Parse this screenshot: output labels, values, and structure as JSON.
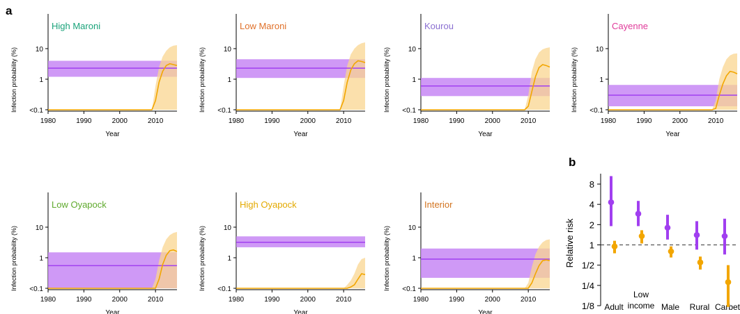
{
  "panel_labels": {
    "a": "a",
    "b": "b"
  },
  "colors": {
    "purple_line": "#a13ff0",
    "purple_band": "#c787f5",
    "orange_line": "#f2a600",
    "orange_band": "#f9d590",
    "dashed": "#555555"
  },
  "chart_data": [
    {
      "type": "area",
      "title": "High Maroni",
      "title_color": "#1aa37a",
      "xlabel": "Year",
      "ylabel": "Infection probability (%)",
      "x_ticks": [
        "1980",
        "1990",
        "2000",
        "2010"
      ],
      "y_ticks": [
        "<0.1",
        "1",
        "10"
      ],
      "xlim": [
        1980,
        2016
      ],
      "purple": {
        "mean": 2.3,
        "lo": 1.2,
        "hi": 4.0
      },
      "orange": {
        "x": [
          2009,
          2010,
          2011,
          2012,
          2013,
          2014,
          2015,
          2016
        ],
        "y": [
          0.1,
          0.2,
          0.8,
          1.8,
          2.8,
          3.2,
          3.0,
          2.8
        ],
        "hi": [
          0.1,
          0.6,
          2.5,
          5.5,
          8.5,
          11,
          12.5,
          13
        ]
      }
    },
    {
      "type": "area",
      "title": "Low Maroni",
      "title_color": "#e0712a",
      "xlabel": "Year",
      "ylabel": "Infection probability (%)",
      "x_ticks": [
        "1980",
        "1990",
        "2000",
        "2010"
      ],
      "y_ticks": [
        "<0.1",
        "1",
        "10"
      ],
      "xlim": [
        1980,
        2016
      ],
      "purple": {
        "mean": 2.3,
        "lo": 1.1,
        "hi": 4.5
      },
      "orange": {
        "x": [
          2009,
          2010,
          2011,
          2012,
          2013,
          2014,
          2015,
          2016
        ],
        "y": [
          0.1,
          0.2,
          0.8,
          2.0,
          3.2,
          4.0,
          3.8,
          3.5
        ],
        "hi": [
          0.1,
          0.6,
          2.8,
          6.5,
          10,
          13,
          15,
          16
        ]
      }
    },
    {
      "type": "area",
      "title": "Kourou",
      "title_color": "#8a6fd1",
      "xlabel": "Year",
      "ylabel": "Infection probability (%)",
      "x_ticks": [
        "1980",
        "1990",
        "2000",
        "2010"
      ],
      "y_ticks": [
        "<0.1",
        "1",
        "10"
      ],
      "xlim": [
        1980,
        2016
      ],
      "purple": {
        "mean": 0.6,
        "lo": 0.28,
        "hi": 1.1
      },
      "orange": {
        "x": [
          2009,
          2010,
          2011,
          2012,
          2013,
          2014,
          2015,
          2016
        ],
        "y": [
          0.1,
          0.13,
          0.4,
          1.2,
          2.4,
          3.0,
          2.8,
          2.5
        ],
        "hi": [
          0.1,
          0.3,
          1.8,
          4.5,
          7.5,
          9.5,
          10.5,
          11
        ]
      }
    },
    {
      "type": "area",
      "title": "Cayenne",
      "title_color": "#e03b9a",
      "xlabel": "Year",
      "ylabel": "Infection probability (%)",
      "x_ticks": [
        "1980",
        "1990",
        "2000",
        "2010"
      ],
      "y_ticks": [
        "<0.1",
        "1",
        "10"
      ],
      "xlim": [
        1980,
        2016
      ],
      "purple": {
        "mean": 0.3,
        "lo": 0.13,
        "hi": 0.65
      },
      "orange": {
        "x": [
          2009,
          2010,
          2011,
          2012,
          2013,
          2014,
          2015,
          2016
        ],
        "y": [
          0.1,
          0.11,
          0.3,
          0.7,
          1.3,
          1.8,
          1.7,
          1.5
        ],
        "hi": [
          0.1,
          0.2,
          1.0,
          2.5,
          4.5,
          6.0,
          6.8,
          7.0
        ]
      }
    },
    {
      "type": "area",
      "title": "Low Oyapock",
      "title_color": "#5faa2d",
      "xlabel": "Year",
      "ylabel": "Infection probability (%)",
      "x_ticks": [
        "1980",
        "1990",
        "2000",
        "2010"
      ],
      "y_ticks": [
        "<0.1",
        "1",
        "10"
      ],
      "xlim": [
        1980,
        2016
      ],
      "purple": {
        "mean": 0.55,
        "lo": 0.1,
        "hi": 1.5
      },
      "orange": {
        "x": [
          2009,
          2010,
          2011,
          2012,
          2013,
          2014,
          2015,
          2016
        ],
        "y": [
          0.1,
          0.1,
          0.2,
          0.6,
          1.2,
          1.7,
          1.8,
          1.6
        ],
        "hi": [
          0.1,
          0.2,
          0.8,
          2.2,
          4.0,
          5.5,
          6.5,
          7.0
        ]
      }
    },
    {
      "type": "area",
      "title": "High Oyapock",
      "title_color": "#e3a900",
      "xlabel": "Year",
      "ylabel": "Infection probability (%)",
      "x_ticks": [
        "1980",
        "1990",
        "2000",
        "2010"
      ],
      "y_ticks": [
        "<0.1",
        "1",
        "10"
      ],
      "xlim": [
        1980,
        2016
      ],
      "purple": {
        "mean": 3.2,
        "lo": 2.2,
        "hi": 5.0
      },
      "orange": {
        "x": [
          2009,
          2010,
          2011,
          2012,
          2013,
          2014,
          2015,
          2016
        ],
        "y": [
          0.1,
          0.1,
          0.1,
          0.11,
          0.13,
          0.2,
          0.3,
          0.28
        ],
        "hi": [
          0.1,
          0.1,
          0.13,
          0.18,
          0.3,
          0.6,
          0.9,
          1.0
        ]
      }
    },
    {
      "type": "area",
      "title": "Interior",
      "title_color": "#d2731f",
      "xlabel": "Year",
      "ylabel": "Infection probability (%)",
      "x_ticks": [
        "1980",
        "1990",
        "2000",
        "2010"
      ],
      "y_ticks": [
        "<0.1",
        "1",
        "10"
      ],
      "xlim": [
        1980,
        2016
      ],
      "purple": {
        "mean": 0.9,
        "lo": 0.22,
        "hi": 2.0
      },
      "orange": {
        "x": [
          2009,
          2010,
          2011,
          2012,
          2013,
          2014,
          2015,
          2016
        ],
        "y": [
          0.1,
          0.1,
          0.15,
          0.3,
          0.55,
          0.8,
          0.85,
          0.8
        ],
        "hi": [
          0.1,
          0.15,
          0.5,
          1.3,
          2.3,
          3.2,
          3.8,
          4.0
        ]
      }
    },
    {
      "type": "scatter",
      "title": "",
      "ylabel": "Relative risk",
      "y_ticks": [
        "1/8",
        "1/4",
        "1/2",
        "1",
        "2",
        "4",
        "8"
      ],
      "y_tick_values": [
        0.125,
        0.25,
        0.5,
        1,
        2,
        4,
        8
      ],
      "categories": [
        "Adult",
        "Low\nincome",
        "Male",
        "Rural",
        "Carbet"
      ],
      "series": [
        {
          "color": "#a13ff0",
          "values": [
            4.3,
            2.9,
            1.8,
            1.4,
            1.35
          ],
          "lo": [
            1.9,
            1.9,
            1.2,
            0.85,
            0.72
          ],
          "hi": [
            10.5,
            4.5,
            2.8,
            2.25,
            2.45
          ]
        },
        {
          "color": "#f2a600",
          "values": [
            0.95,
            1.35,
            0.8,
            0.55,
            0.28
          ],
          "lo": [
            0.75,
            1.05,
            0.65,
            0.43,
            0.12
          ],
          "hi": [
            1.15,
            1.65,
            0.95,
            0.67,
            0.5
          ]
        }
      ]
    }
  ]
}
